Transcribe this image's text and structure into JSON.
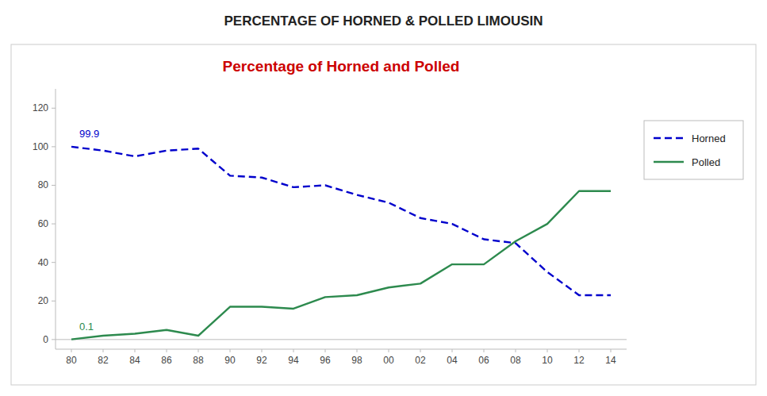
{
  "chart_data": {
    "type": "line",
    "title": "PERCENTAGE OF HORNED & POLLED LIMOUSIN",
    "subtitle": "Percentage of Horned and Polled",
    "categories": [
      "80",
      "82",
      "84",
      "86",
      "88",
      "90",
      "92",
      "94",
      "96",
      "98",
      "00",
      "02",
      "04",
      "06",
      "08",
      "10",
      "12",
      "14"
    ],
    "series": [
      {
        "name": "Horned",
        "color": "#0000cc",
        "line_style": "dashed",
        "values": [
          100,
          98,
          95,
          98,
          99,
          85,
          84,
          79,
          80,
          75,
          71,
          63,
          60,
          52,
          50,
          35,
          23,
          23
        ]
      },
      {
        "name": "Polled",
        "color": "#2d8a4e",
        "line_style": "solid",
        "values": [
          0.1,
          2,
          3,
          5,
          2,
          17,
          17,
          16,
          22,
          23,
          27,
          29,
          39,
          39,
          51,
          60,
          77,
          77
        ]
      }
    ],
    "annotations": [
      "99.9",
      "0.1"
    ],
    "ylim": [
      -5,
      130
    ],
    "yticks": [
      0,
      20,
      40,
      60,
      80,
      100,
      120
    ],
    "grid": false,
    "legend": "right"
  }
}
